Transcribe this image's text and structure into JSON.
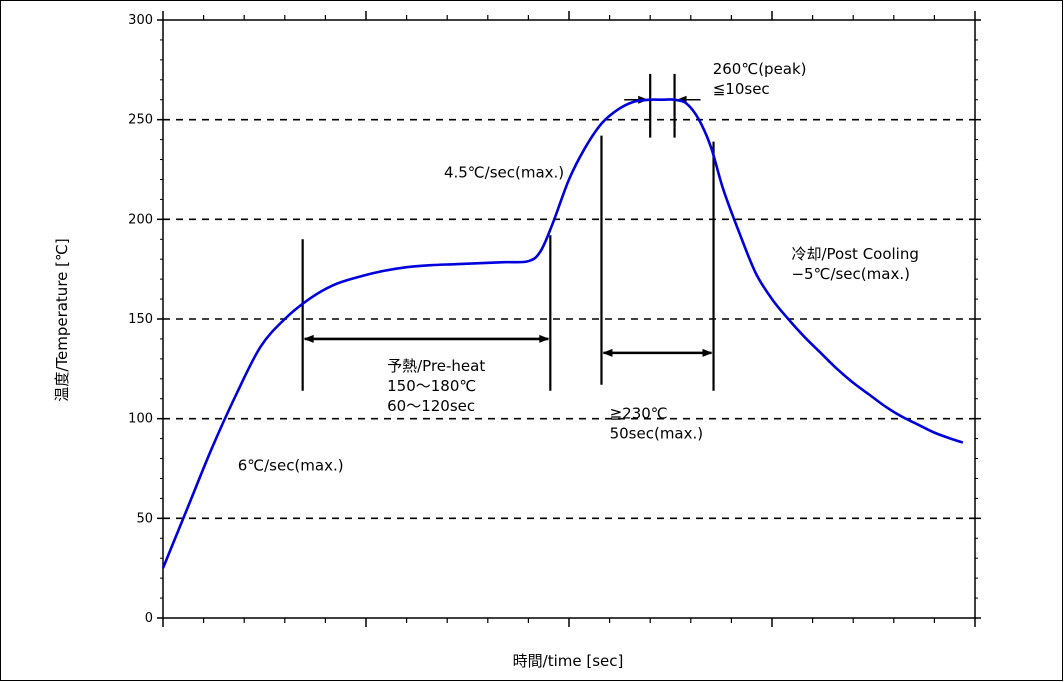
{
  "chart_data": {
    "type": "line",
    "xlabel": "時間/time [sec]",
    "ylabel": "温度/Temperature [℃]",
    "xlim": [
      0,
      100
    ],
    "ylim": [
      0,
      300
    ],
    "y_ticks": [
      0,
      50,
      100,
      150,
      200,
      250,
      300
    ],
    "x_ticks_labeled": false,
    "grid": {
      "horizontal_dashed_at": [
        50,
        100,
        150,
        200,
        250
      ]
    },
    "series": [
      {
        "color": "#0000dd",
        "x": [
          0,
          3,
          6,
          9,
          12,
          15,
          18,
          21,
          24,
          27,
          30,
          33,
          36,
          39,
          42,
          45,
          46.5,
          48,
          50,
          52,
          54,
          56,
          58,
          60,
          61.5,
          63,
          64.5,
          66,
          67.5,
          69,
          71,
          73,
          75,
          77,
          79,
          81,
          83,
          85,
          87,
          89,
          91,
          93,
          95,
          97,
          98.5
        ],
        "y": [
          25,
          55,
          85,
          112,
          136,
          150,
          160,
          167,
          171,
          174,
          176,
          177,
          177.5,
          178,
          178.5,
          179,
          184,
          198,
          220,
          236,
          248,
          255,
          259,
          260,
          260,
          260,
          258,
          250,
          236,
          215,
          193,
          173,
          160,
          150,
          141,
          133,
          125,
          118,
          112,
          106,
          101,
          97,
          93,
          90,
          88
        ]
      }
    ],
    "markers": [
      {
        "type": "vline",
        "x": 17.2,
        "y_from": 114,
        "y_to": 190
      },
      {
        "type": "vline",
        "x": 47.7,
        "y_from": 114,
        "y_to": 192
      },
      {
        "type": "vline",
        "x": 54.0,
        "y_from": 117,
        "y_to": 242
      },
      {
        "type": "vline",
        "x": 67.8,
        "y_from": 114,
        "y_to": 239
      },
      {
        "type": "vline",
        "x": 60.0,
        "y_from": 241,
        "y_to": 273
      },
      {
        "type": "vline",
        "x": 63.0,
        "y_from": 241,
        "y_to": 273
      },
      {
        "type": "span_arrow",
        "x1": 17.2,
        "x2": 47.7,
        "y": 140
      },
      {
        "type": "span_arrow",
        "x1": 54.0,
        "x2": 67.8,
        "y": 133
      },
      {
        "type": "inward_arrows",
        "x1": 60.0,
        "x2": 63.0,
        "y": 260
      }
    ],
    "annotations": [
      {
        "id": "peak",
        "lines": [
          "260℃(peak)",
          "≦10sec"
        ],
        "x": 67.7,
        "y": 273
      },
      {
        "id": "ramp-up",
        "lines": [
          "4.5℃/sec(max.)"
        ],
        "x": 34.6,
        "y": 221
      },
      {
        "id": "preheat",
        "lines": [
          "予熱/Pre-heat",
          "150～180℃",
          "60～120sec"
        ],
        "x": 27.6,
        "y": 124
      },
      {
        "id": "reflow",
        "lines": [
          "≧230℃",
          "50sec(max.)"
        ],
        "x": 55.0,
        "y": 100
      },
      {
        "id": "cooling",
        "lines": [
          "冷却/Post Cooling",
          "−5℃/sec(max.)"
        ],
        "x": 77.4,
        "y": 180
      },
      {
        "id": "initial-ramp",
        "lines": [
          "6℃/sec(max.)"
        ],
        "x": 9.2,
        "y": 74
      }
    ]
  }
}
